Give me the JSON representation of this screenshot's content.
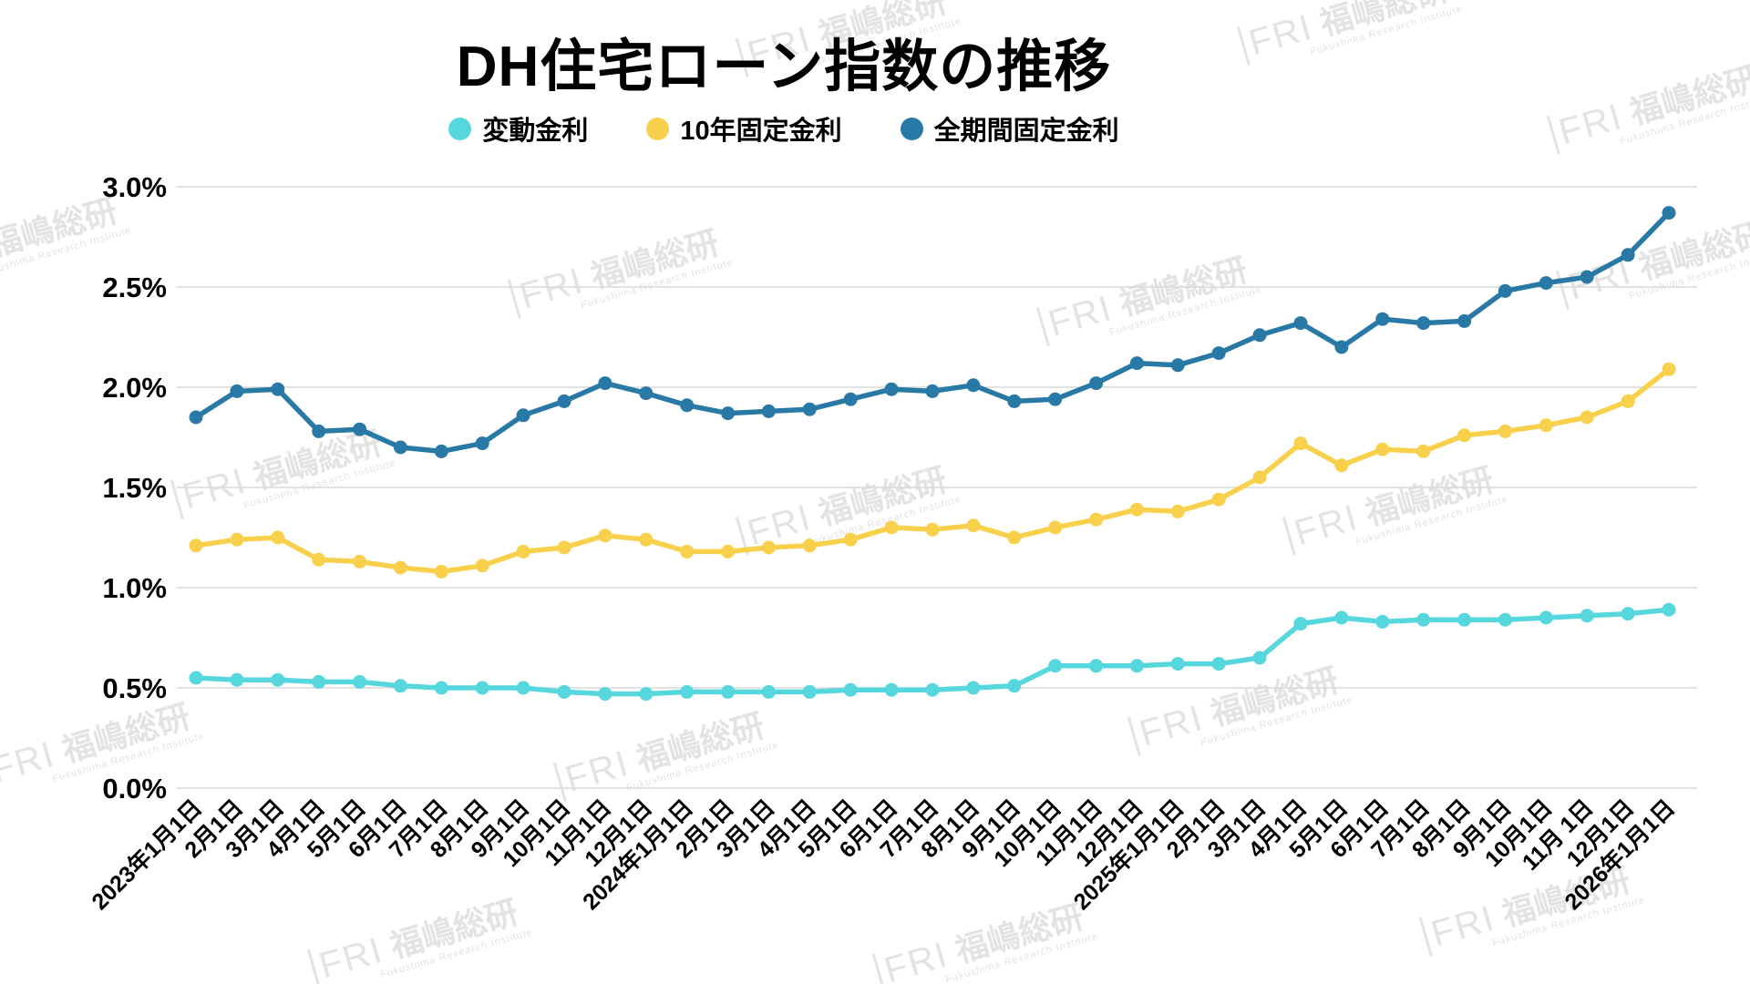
{
  "page": {
    "title": "DH住宅ローン指数の推移"
  },
  "watermark": {
    "logo": "FRI",
    "name": "福嶋総研",
    "subtitle": "Fukushima Research Institute"
  },
  "axes": {
    "ytick_suffix": "%"
  },
  "chart_data": {
    "type": "line",
    "title": "DH住宅ローン指数の推移",
    "xlabel": "",
    "ylabel": "",
    "ylim": [
      0,
      3.0
    ],
    "ytick_step": 0.5,
    "grid": "horizontal",
    "legend_position": "top",
    "marker": "circle",
    "categories": [
      "2023年1月1日",
      "2月1日",
      "3月1日",
      "4月1日",
      "5月1日",
      "6月1日",
      "7月1日",
      "8月1日",
      "9月1日",
      "10月1日",
      "11月1日",
      "12月1日",
      "2024年1月1日",
      "2月1日",
      "3月1日",
      "4月1日",
      "5月1日",
      "6月1日",
      "7月1日",
      "8月1日",
      "9月1日",
      "10月1日",
      "11月1日",
      "12月1日",
      "2025年1月1日",
      "2月1日",
      "3月1日",
      "4月1日",
      "5月1日",
      "6月1日",
      "7月1日",
      "8月1日",
      "9月1日",
      "10月1日",
      "11月 1日",
      "12月1日",
      "2026年1月1日"
    ],
    "series": [
      {
        "name": "変動金利",
        "color": "#55d7dd",
        "values": [
          0.55,
          0.54,
          0.54,
          0.53,
          0.53,
          0.51,
          0.5,
          0.5,
          0.5,
          0.48,
          0.47,
          0.47,
          0.48,
          0.48,
          0.48,
          0.48,
          0.49,
          0.49,
          0.49,
          0.5,
          0.51,
          0.61,
          0.61,
          0.61,
          0.62,
          0.62,
          0.65,
          0.82,
          0.85,
          0.83,
          0.84,
          0.84,
          0.84,
          0.85,
          0.86,
          0.87,
          0.89
        ]
      },
      {
        "name": "10年固定金利",
        "color": "#f9d04b",
        "values": [
          1.21,
          1.24,
          1.25,
          1.14,
          1.13,
          1.1,
          1.08,
          1.11,
          1.18,
          1.2,
          1.26,
          1.24,
          1.18,
          1.18,
          1.2,
          1.21,
          1.24,
          1.3,
          1.29,
          1.31,
          1.25,
          1.3,
          1.34,
          1.39,
          1.38,
          1.44,
          1.55,
          1.72,
          1.61,
          1.69,
          1.68,
          1.76,
          1.78,
          1.81,
          1.85,
          1.93,
          2.09
        ]
      },
      {
        "name": "全期間固定金利",
        "color": "#2979a7",
        "values": [
          1.85,
          1.98,
          1.99,
          1.78,
          1.79,
          1.7,
          1.68,
          1.72,
          1.86,
          1.93,
          2.02,
          1.97,
          1.91,
          1.87,
          1.88,
          1.89,
          1.94,
          1.99,
          1.98,
          2.01,
          1.93,
          1.94,
          2.02,
          2.12,
          2.11,
          2.17,
          2.26,
          2.32,
          2.2,
          2.34,
          2.32,
          2.33,
          2.48,
          2.52,
          2.55,
          2.66,
          2.87
        ]
      }
    ]
  }
}
